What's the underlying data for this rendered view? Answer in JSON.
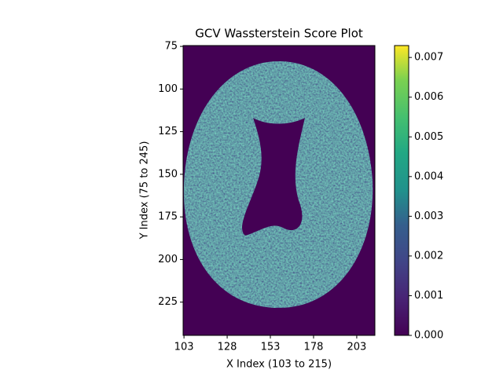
{
  "chart_data": {
    "type": "heatmap",
    "title": "GCV Wassterstein Score Plot",
    "x_label": "X Index (103 to 215)",
    "y_label": "Y Index (75 to 245)",
    "xlim": [
      102.5,
      213.5
    ],
    "xticks": [
      103,
      128,
      153,
      178,
      203
    ],
    "ylim": [
      244.5,
      74.5
    ],
    "yticks": [
      75,
      100,
      125,
      150,
      175,
      200,
      225
    ],
    "colormap": "viridis",
    "clim": [
      0,
      0.0073
    ],
    "cticks": [
      {
        "value": 0,
        "label": "0.000"
      },
      {
        "value": 0.001,
        "label": "0.001"
      },
      {
        "value": 0.002,
        "label": "0.002"
      },
      {
        "value": 0.003,
        "label": "0.003"
      },
      {
        "value": 0.004,
        "label": "0.004"
      },
      {
        "value": 0.005,
        "label": "0.005"
      },
      {
        "value": 0.006,
        "label": "0.006"
      },
      {
        "value": 0.007,
        "label": "0.007"
      }
    ]
  }
}
